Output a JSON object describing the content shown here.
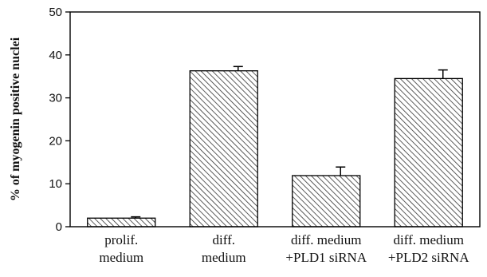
{
  "chart_data": {
    "type": "bar",
    "title": "",
    "xlabel": "",
    "ylabel": "% of myogenin positive nuclei",
    "ylim": [
      0,
      50
    ],
    "yticks": [
      0,
      10,
      20,
      30,
      40,
      50
    ],
    "categories": [
      [
        "prolif.",
        "medium"
      ],
      [
        "diff.",
        "medium"
      ],
      [
        "diff. medium",
        "+PLD1 siRNA"
      ],
      [
        "diff. medium",
        "+PLD2 siRNA"
      ]
    ],
    "values": [
      2,
      36.3,
      11.9,
      34.5
    ],
    "errors": [
      0.3,
      1.0,
      2.0,
      2.0
    ],
    "grid": false,
    "fill_pattern": "diagonal-hatch",
    "colors": {
      "bar_fill": "#ffffff",
      "hatch": "#333333",
      "axis": "#000000"
    }
  }
}
